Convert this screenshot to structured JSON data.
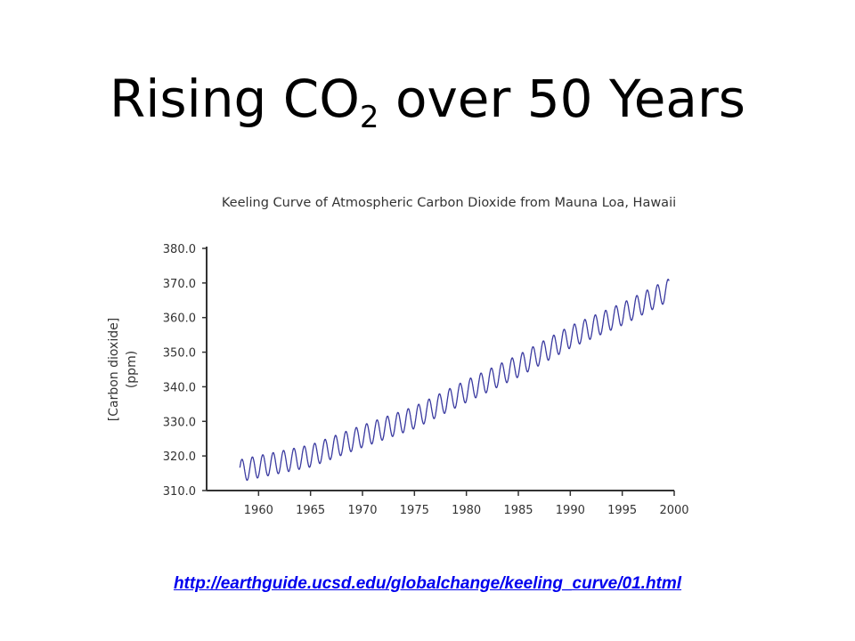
{
  "slide": {
    "title_prefix": "Rising CO",
    "title_subscript": "2",
    "title_suffix": " over 50 Years",
    "source_url": "http://earthguide.ucsd.edu/globalchange/keeling_curve/01.html"
  },
  "colors": {
    "series": "#3a3aa0",
    "axis": "#333333",
    "link": "#0000ee"
  },
  "chart_data": {
    "type": "line",
    "title": "Keeling Curve of Atmospheric Carbon Dioxide from Mauna Loa, Hawaii",
    "ylabel_line1": "[Carbon dioxide]",
    "ylabel_line2": "(ppm)",
    "xlabel": "",
    "xlim": [
      1955,
      2000
    ],
    "ylim": [
      310.0,
      380.0
    ],
    "x_ticks": [
      "1960",
      "1965",
      "1970",
      "1975",
      "1980",
      "1985",
      "1990",
      "1995",
      "2000"
    ],
    "y_ticks": [
      "380.0",
      "370.0",
      "360.0",
      "350.0",
      "340.0",
      "330.0",
      "320.0",
      "310.0"
    ],
    "grid": false,
    "series": [
      {
        "values_note_free": true,
        "x": [
          1958.2,
          1960,
          1965,
          1970,
          1975,
          1980,
          1985,
          1990,
          1995,
          1999.5
        ],
        "y": [
          315.7,
          316.9,
          320.0,
          325.7,
          331.1,
          338.7,
          346.0,
          354.4,
          361.0,
          368.0
        ],
        "seasonal_amplitude": 3.2
      }
    ]
  }
}
